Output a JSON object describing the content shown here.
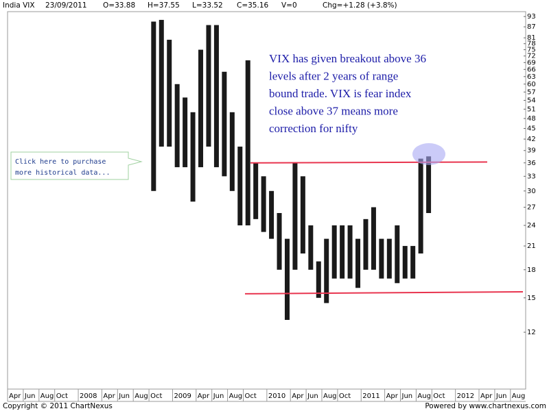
{
  "chart_data": {
    "type": "range_bar",
    "title": "India VIX",
    "info": [
      "23/09/2011",
      "O=33.88",
      "H=37.55",
      "L=33.52",
      "C=35.16",
      "V=0",
      "Chg=+1.28 (+3.8%)"
    ],
    "annotation": [
      "VIX has given breakout above 36",
      "levels after 2 years of range",
      "bound trade. VIX is fear index",
      "close above 37 means more",
      "correction for nifty"
    ],
    "callout": [
      "Click here to purchase",
      "more historical data..."
    ],
    "footer_left": "Copyright © 2011 ChartNexus",
    "footer_right": "Powered by www.chartnexus.com",
    "categories": [
      "Apr",
      null,
      "Jun",
      null,
      "Aug",
      null,
      "Oct",
      null,
      null,
      "2008",
      null,
      null,
      "Apr",
      null,
      "Jun",
      null,
      "Aug",
      null,
      "Oct",
      null,
      null,
      "2009",
      null,
      null,
      "Apr",
      null,
      "Jun",
      null,
      "Aug",
      null,
      "Oct",
      null,
      null,
      "2010",
      null,
      null,
      "Apr",
      null,
      "Jun",
      null,
      "Aug",
      null,
      "Oct",
      null,
      null,
      "2011",
      null,
      null,
      "Apr",
      null,
      "Jun",
      null,
      "Aug",
      null,
      "Oct",
      null,
      null,
      "2012",
      null,
      null,
      "Apr",
      null,
      "Jun",
      null,
      "Aug",
      null
    ],
    "high": [
      null,
      null,
      null,
      null,
      null,
      null,
      null,
      null,
      null,
      null,
      null,
      null,
      null,
      null,
      null,
      null,
      null,
      null,
      90,
      91,
      80,
      60,
      55,
      50,
      75,
      88,
      88,
      65,
      50,
      40,
      70,
      36,
      33,
      30,
      26,
      22,
      36,
      33,
      24,
      19,
      22,
      24,
      24,
      24,
      22,
      25,
      27,
      22,
      22,
      24,
      21,
      21,
      37,
      37.55,
      null,
      null,
      null,
      null,
      null,
      null,
      null,
      null,
      null,
      null,
      null,
      null
    ],
    "low": [
      null,
      null,
      null,
      null,
      null,
      null,
      null,
      null,
      null,
      null,
      null,
      null,
      null,
      null,
      null,
      null,
      null,
      null,
      30,
      40,
      40,
      35,
      35,
      28,
      35,
      40,
      35,
      33,
      30,
      24,
      24,
      25,
      23,
      22,
      18,
      13,
      18,
      20,
      18,
      15,
      14.5,
      17,
      17,
      17,
      16,
      18,
      18,
      17,
      17,
      16.5,
      17,
      17,
      20,
      26,
      null,
      null,
      null,
      null,
      null,
      null,
      null,
      null,
      null,
      null,
      null,
      null
    ],
    "color": "#1a1a1a",
    "ylim": [
      8.3,
      96
    ],
    "log_y": true,
    "grid": false,
    "yticks": [
      12,
      15,
      18,
      21,
      24,
      27,
      30,
      33,
      36,
      39,
      42,
      45,
      48,
      51,
      54,
      57,
      60,
      63,
      66,
      69,
      72,
      75,
      78,
      81,
      87,
      93
    ],
    "trend_lines": [
      {
        "color": "#e8344e",
        "values": [
          36,
          36.2
        ]
      },
      {
        "color": "#e8344e",
        "values": [
          15.4,
          15.6
        ]
      }
    ]
  }
}
